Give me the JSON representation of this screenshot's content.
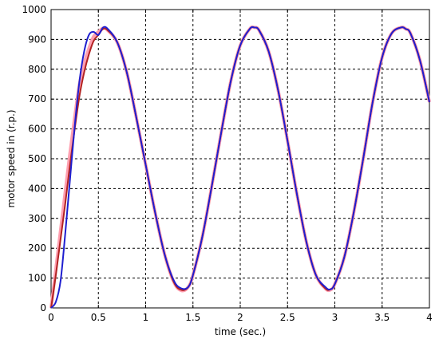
{
  "chart_data": {
    "type": "line",
    "title": "",
    "xlabel": "time (sec.)",
    "ylabel": "motor speed in (r.p.)",
    "xlim": [
      0,
      4
    ],
    "ylim": [
      0,
      1000
    ],
    "xticks": [
      "0",
      "0.5",
      "1",
      "1.5",
      "2",
      "2.5",
      "3",
      "3.5",
      "4"
    ],
    "yticks": [
      "0",
      "100",
      "200",
      "300",
      "400",
      "500",
      "600",
      "700",
      "800",
      "900",
      "1000"
    ],
    "grid": true,
    "legend": "none",
    "colors": {
      "reference": "#ff9fb0",
      "estimated": "#b22222",
      "actual": "#1f1fd0"
    },
    "series": [
      {
        "color_key": "reference",
        "x": [
          0,
          0.05,
          0.1,
          0.15,
          0.2,
          0.25,
          0.3,
          0.35,
          0.4,
          0.45,
          0.5,
          0.55,
          0.6,
          0.7,
          0.8,
          0.9,
          1.0,
          1.1,
          1.2,
          1.3,
          1.38,
          1.45,
          1.5,
          1.6,
          1.7,
          1.8,
          1.9,
          2.0,
          2.1,
          2.15,
          2.2,
          2.3,
          2.4,
          2.5,
          2.6,
          2.7,
          2.8,
          2.9,
          2.95,
          3.0,
          3.1,
          3.2,
          3.3,
          3.4,
          3.5,
          3.6,
          3.7,
          3.75,
          3.8,
          3.9,
          4.0
        ],
        "y": [
          0,
          130,
          260,
          390,
          520,
          640,
          750,
          820,
          870,
          910,
          925,
          938,
          930,
          890,
          790,
          640,
          480,
          320,
          180,
          85,
          58,
          70,
          110,
          240,
          410,
          590,
          760,
          880,
          935,
          940,
          930,
          860,
          730,
          560,
          380,
          220,
          110,
          65,
          60,
          80,
          170,
          320,
          500,
          690,
          840,
          920,
          940,
          935,
          920,
          830,
          690
        ]
      },
      {
        "color_key": "estimated",
        "x": [
          0,
          0.05,
          0.1,
          0.15,
          0.2,
          0.25,
          0.3,
          0.35,
          0.4,
          0.45,
          0.5,
          0.55,
          0.6,
          0.7,
          0.8,
          0.9,
          1.0,
          1.1,
          1.2,
          1.3,
          1.38,
          1.45,
          1.5,
          1.6,
          1.7,
          1.8,
          1.9,
          2.0,
          2.1,
          2.15,
          2.2,
          2.3,
          2.4,
          2.5,
          2.6,
          2.7,
          2.8,
          2.9,
          2.95,
          3.0,
          3.1,
          3.2,
          3.3,
          3.4,
          3.5,
          3.6,
          3.7,
          3.75,
          3.8,
          3.9,
          4.0
        ],
        "y": [
          0,
          110,
          230,
          350,
          480,
          600,
          710,
          790,
          850,
          895,
          915,
          935,
          930,
          890,
          790,
          640,
          480,
          320,
          180,
          85,
          60,
          70,
          110,
          240,
          410,
          590,
          760,
          880,
          935,
          940,
          930,
          860,
          730,
          560,
          380,
          220,
          110,
          65,
          62,
          80,
          170,
          320,
          500,
          690,
          840,
          920,
          940,
          935,
          920,
          830,
          690
        ]
      },
      {
        "color_key": "actual",
        "x": [
          0,
          0.05,
          0.1,
          0.15,
          0.2,
          0.25,
          0.3,
          0.35,
          0.4,
          0.45,
          0.5,
          0.55,
          0.6,
          0.7,
          0.8,
          0.9,
          1.0,
          1.1,
          1.2,
          1.3,
          1.38,
          1.45,
          1.5,
          1.6,
          1.7,
          1.8,
          1.9,
          2.0,
          2.1,
          2.15,
          2.2,
          2.3,
          2.4,
          2.5,
          2.6,
          2.7,
          2.8,
          2.9,
          2.95,
          3.0,
          3.1,
          3.2,
          3.3,
          3.4,
          3.5,
          3.6,
          3.7,
          3.75,
          3.8,
          3.9,
          4.0
        ],
        "y": [
          0,
          20,
          90,
          250,
          430,
          610,
          760,
          860,
          915,
          925,
          915,
          940,
          935,
          890,
          790,
          640,
          480,
          320,
          180,
          90,
          65,
          70,
          110,
          240,
          410,
          590,
          760,
          880,
          935,
          940,
          930,
          860,
          730,
          560,
          380,
          220,
          110,
          70,
          62,
          80,
          170,
          320,
          500,
          690,
          840,
          920,
          940,
          935,
          920,
          830,
          690
        ]
      }
    ]
  }
}
